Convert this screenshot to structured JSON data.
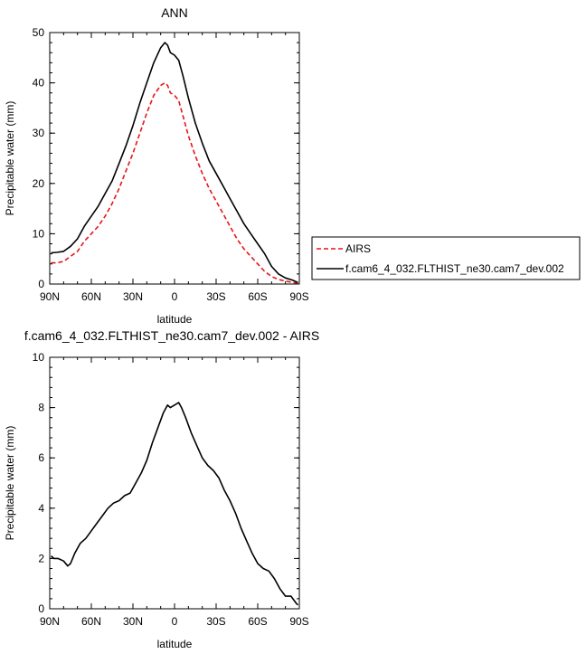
{
  "chart_data": [
    {
      "type": "line",
      "title": "ANN",
      "xlabel": "latitude",
      "ylabel": "Precipitable water (mm)",
      "xlim": [
        -90,
        90
      ],
      "ylim": [
        0,
        50
      ],
      "x_ticks": [
        "90N",
        "60N",
        "30N",
        "0",
        "30S",
        "60S",
        "90S"
      ],
      "y_ticks": [
        "0",
        "10",
        "20",
        "30",
        "40",
        "50"
      ],
      "grid": false,
      "legend_position": "right",
      "series": [
        {
          "name": "AIRS",
          "color": "#e8141a",
          "dash": "dashed",
          "x": [
            -89,
            -85,
            -80,
            -75,
            -70,
            -65,
            -60,
            -55,
            -50,
            -45,
            -40,
            -35,
            -30,
            -25,
            -20,
            -15,
            -10,
            -7,
            -5,
            -3,
            0,
            3,
            6,
            10,
            15,
            20,
            25,
            30,
            35,
            40,
            45,
            50,
            55,
            60,
            65,
            70,
            75,
            80,
            85,
            89
          ],
          "y": [
            4.2,
            4.2,
            4.5,
            5.5,
            6.5,
            8.5,
            10.0,
            11.5,
            13.5,
            16.0,
            19.0,
            22.5,
            26.0,
            30.0,
            34.0,
            37.5,
            39.5,
            40.0,
            39.5,
            38.0,
            37.5,
            36.5,
            33.5,
            29.5,
            25.5,
            22.0,
            19.0,
            16.5,
            14.0,
            11.5,
            9.0,
            7.0,
            5.5,
            4.0,
            2.5,
            1.5,
            0.9,
            0.6,
            0.3,
            0.2
          ]
        },
        {
          "name": "f.cam6_4_032.FLTHIST_ne30.cam7_dev.002",
          "color": "#000000",
          "dash": "solid",
          "x": [
            -89,
            -85,
            -80,
            -75,
            -70,
            -65,
            -60,
            -55,
            -50,
            -45,
            -40,
            -35,
            -30,
            -25,
            -20,
            -15,
            -10,
            -7,
            -5,
            -3,
            0,
            3,
            6,
            10,
            15,
            20,
            25,
            30,
            35,
            40,
            45,
            50,
            55,
            60,
            65,
            70,
            75,
            80,
            85,
            89
          ],
          "y": [
            6.2,
            6.3,
            6.5,
            7.5,
            9.0,
            11.5,
            13.5,
            15.5,
            18.0,
            20.5,
            24.0,
            27.5,
            31.5,
            36.0,
            40.0,
            44.0,
            47.0,
            48.0,
            47.5,
            46.0,
            45.5,
            44.5,
            41.5,
            37.0,
            32.0,
            28.0,
            24.5,
            22.0,
            19.5,
            17.0,
            14.5,
            12.0,
            10.0,
            8.0,
            6.0,
            3.5,
            2.0,
            1.2,
            0.8,
            0.3
          ]
        }
      ]
    },
    {
      "type": "line",
      "title": "f.cam6_4_032.FLTHIST_ne30.cam7_dev.002 - AIRS",
      "xlabel": "latitude",
      "ylabel": "Precipitable water (mm)",
      "xlim": [
        -90,
        90
      ],
      "ylim": [
        0,
        10
      ],
      "x_ticks": [
        "90N",
        "60N",
        "30N",
        "0",
        "30S",
        "60S",
        "90S"
      ],
      "y_ticks": [
        "0",
        "2",
        "4",
        "6",
        "8",
        "10"
      ],
      "grid": false,
      "series": [
        {
          "color": "#000000",
          "dash": "solid",
          "x": [
            -89,
            -87,
            -84,
            -80,
            -77,
            -75,
            -72,
            -68,
            -64,
            -60,
            -56,
            -52,
            -48,
            -44,
            -40,
            -36,
            -32,
            -28,
            -24,
            -20,
            -16,
            -12,
            -8,
            -5,
            -3,
            0,
            3,
            5,
            8,
            12,
            16,
            20,
            24,
            28,
            32,
            36,
            40,
            44,
            48,
            52,
            56,
            60,
            64,
            68,
            72,
            76,
            80,
            84,
            88,
            89
          ],
          "y": [
            2.1,
            2.0,
            2.0,
            1.9,
            1.7,
            1.8,
            2.2,
            2.6,
            2.8,
            3.1,
            3.4,
            3.7,
            4.0,
            4.2,
            4.3,
            4.5,
            4.6,
            5.0,
            5.4,
            5.9,
            6.6,
            7.2,
            7.8,
            8.1,
            8.0,
            8.1,
            8.2,
            8.0,
            7.6,
            7.0,
            6.5,
            6.0,
            5.7,
            5.5,
            5.2,
            4.7,
            4.3,
            3.8,
            3.2,
            2.7,
            2.2,
            1.8,
            1.6,
            1.5,
            1.2,
            0.8,
            0.5,
            0.5,
            0.2,
            0.15
          ]
        }
      ]
    }
  ]
}
